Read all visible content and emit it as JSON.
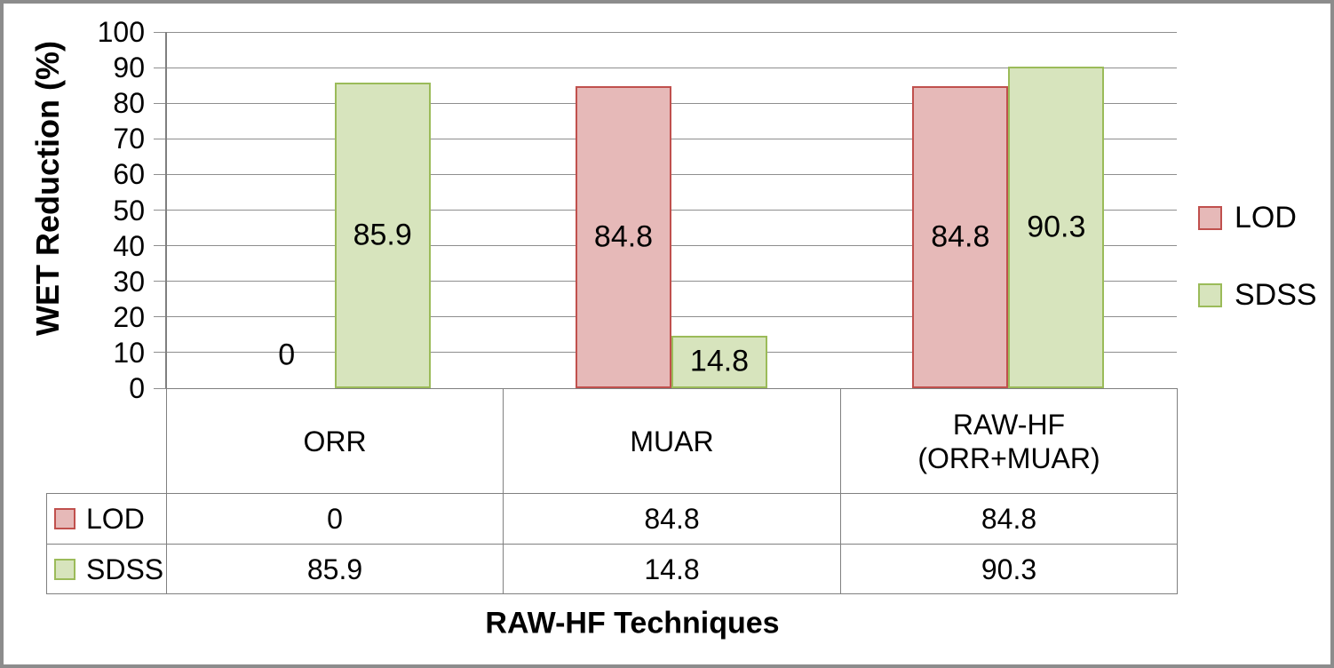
{
  "chart_data": {
    "type": "bar",
    "title": "",
    "categories": [
      "ORR",
      "MUAR",
      "RAW-HF\n(ORR+MUAR)"
    ],
    "series": [
      {
        "name": "LOD",
        "values": [
          0,
          84.8,
          84.8
        ],
        "labels": [
          "0",
          "84.8",
          "84.8"
        ],
        "fill": "#E6B9B8",
        "border_color": "#C0504D"
      },
      {
        "name": "SDSS",
        "values": [
          85.9,
          14.8,
          90.3
        ],
        "labels": [
          "85.9",
          "14.8",
          "90.3"
        ],
        "fill": "#D7E4BD",
        "border_color": "#9BBB59"
      }
    ],
    "xlabel": "RAW-HF Techniques",
    "ylabel": "WET Reduction (%)",
    "ylim": [
      0,
      100
    ],
    "ytick_labels": [
      "100",
      "90",
      "80",
      "70",
      "60",
      "50",
      "40",
      "30",
      "20",
      "10",
      "0"
    ],
    "grid": true,
    "legend_position": "right",
    "legend_items": [
      "LOD",
      "SDSS"
    ],
    "data_table": {
      "row_headers": [
        "LOD",
        "SDSS"
      ],
      "columns": [
        "ORR",
        "MUAR",
        "RAW-HF\n(ORR+MUAR)"
      ],
      "rows": [
        [
          "0",
          "84.8",
          "84.8"
        ],
        [
          "85.9",
          "14.8",
          "90.3"
        ]
      ]
    }
  },
  "colors": {
    "grid": "#8E8E8E",
    "axis": "#7F7F7F",
    "table_border": "#808080",
    "outer_border": "#8C8C8C",
    "text": "#000000"
  }
}
